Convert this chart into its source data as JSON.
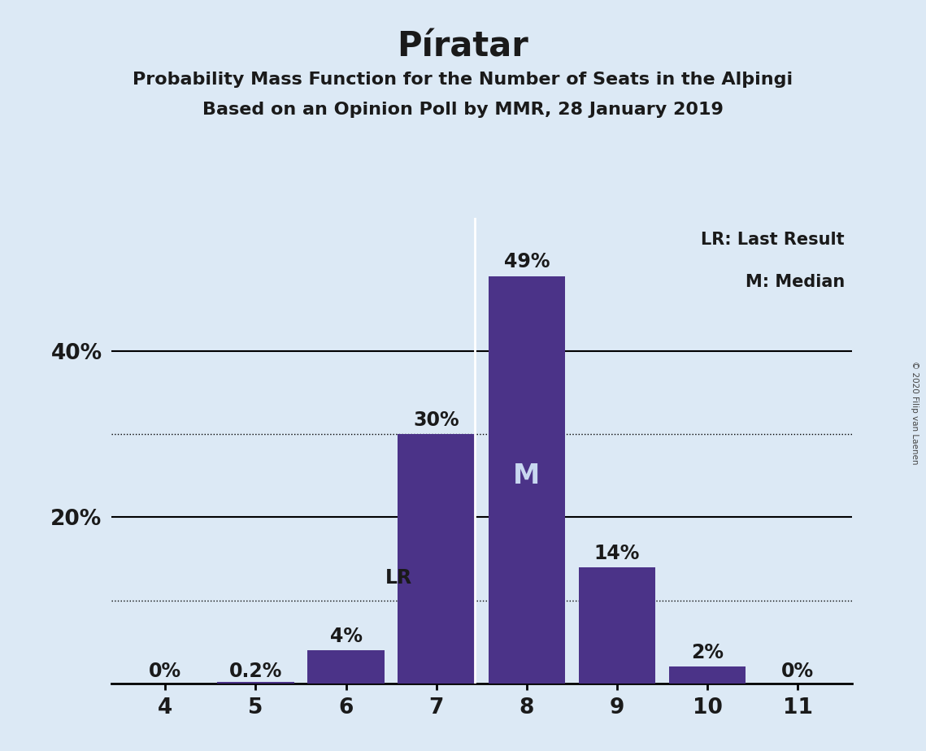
{
  "title": "Píratar",
  "subtitle1": "Probability Mass Function for the Number of Seats in the Alþingi",
  "subtitle2": "Based on an Opinion Poll by MMR, 28 January 2019",
  "copyright": "© 2020 Filip van Laenen",
  "seats": [
    4,
    5,
    6,
    7,
    8,
    9,
    10,
    11
  ],
  "probabilities": [
    0.0,
    0.2,
    4.0,
    30.0,
    49.0,
    14.0,
    2.0,
    0.0
  ],
  "bar_color": "#4B3388",
  "background_color": "#DCE9F5",
  "last_result_seat": 7,
  "median_seat": 8,
  "legend_lr": "LR: Last Result",
  "legend_m": "M: Median",
  "yticks": [
    20,
    40
  ],
  "yticks_dotted": [
    10,
    30
  ],
  "ymax": 56,
  "m_color": "#C8D8F0",
  "label_color": "#1a1a1a",
  "title_color": "#1a1a1a"
}
